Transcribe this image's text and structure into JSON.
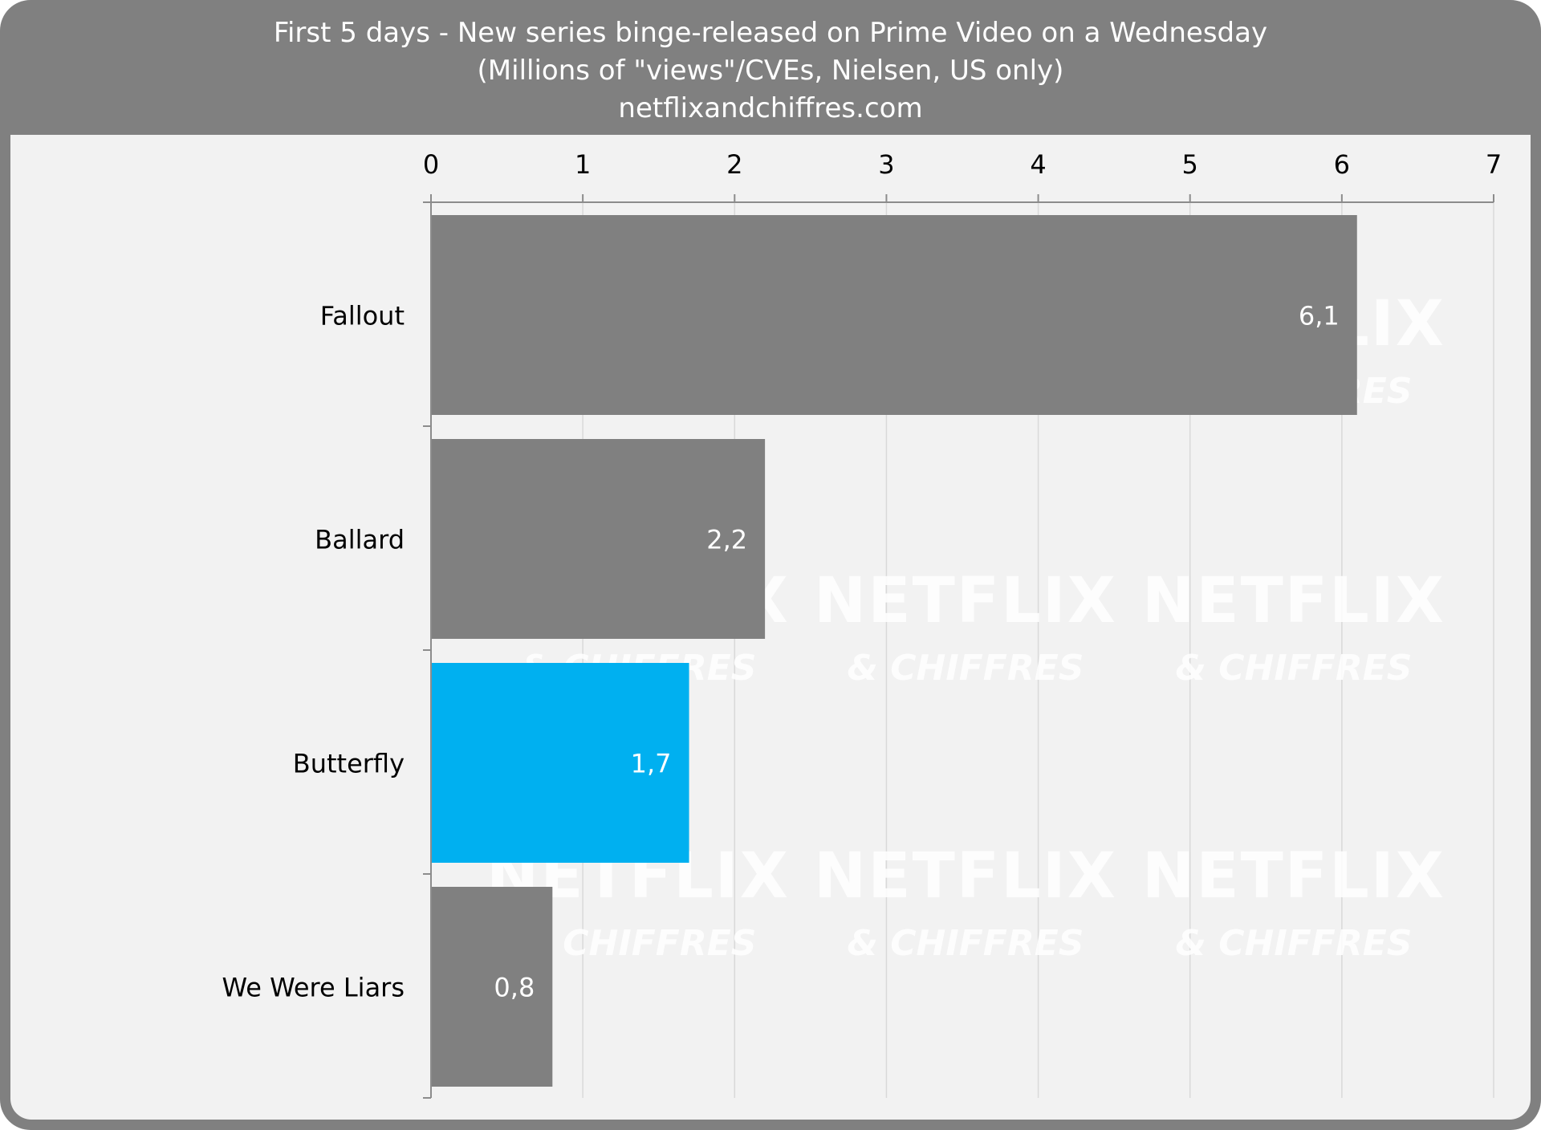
{
  "header": {
    "title": "First 5 days - New series binge-released on Prime Video on a Wednesday",
    "subtitle": "(Millions of \"views\"/CVEs, Nielsen, US only)",
    "source": "netflixandchiffres.com"
  },
  "watermark": {
    "line1": "NETFLIX",
    "line2": "& CHIFFRES"
  },
  "colors": {
    "frame": "#808080",
    "panel": "#f2f2f2",
    "bar_default": "#808080",
    "bar_highlight": "#00b0f0",
    "grid": "#d9d9d9",
    "axis": "#8c8c8c"
  },
  "chart_data": {
    "type": "bar",
    "orientation": "horizontal",
    "categories": [
      "Fallout",
      "Ballard",
      "Butterfly",
      "We Were Liars"
    ],
    "values": [
      6.1,
      2.2,
      1.7,
      0.8
    ],
    "data_labels": [
      "6,1",
      "2,2",
      "1,7",
      "0,8"
    ],
    "highlight": "Butterfly",
    "xlim": [
      0,
      7
    ],
    "xticks": [
      0,
      1,
      2,
      3,
      4,
      5,
      6,
      7
    ],
    "axis_position": "top",
    "grid": true,
    "legend": "none"
  }
}
